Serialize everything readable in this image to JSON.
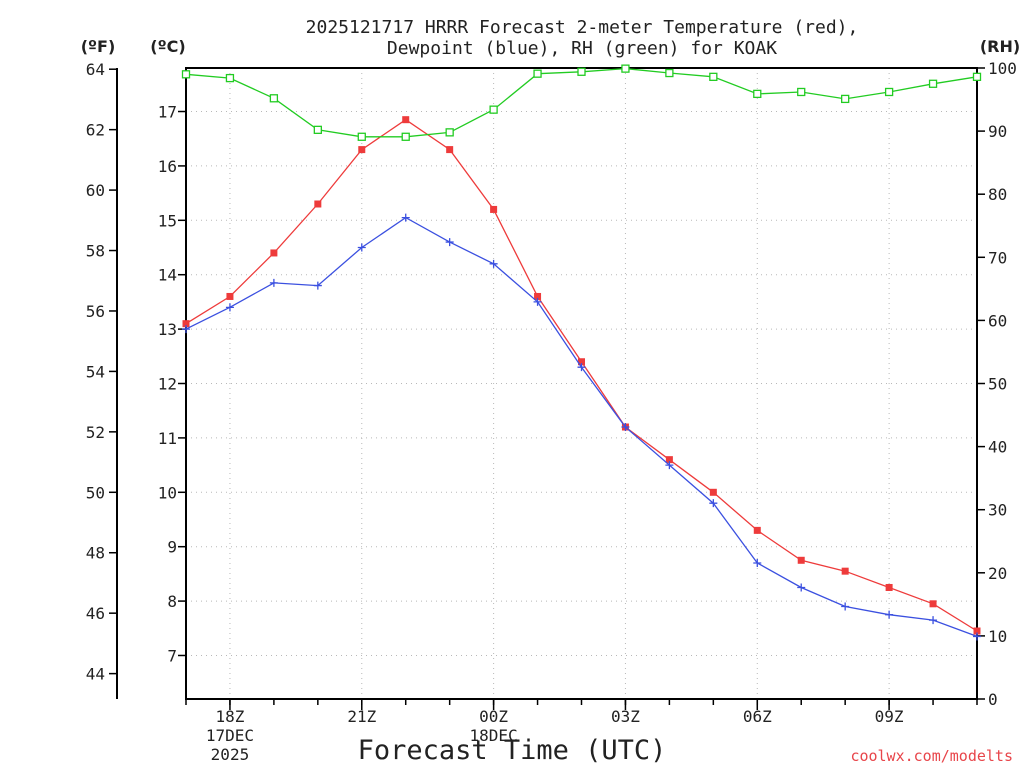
{
  "chart_data": {
    "type": "line",
    "title": "2025121717 HRRR Forecast 2-meter Temperature (red),",
    "subtitle": "Dewpoint (blue), RH (green) for KOAK",
    "xlabel": "Forecast Time (UTC)",
    "credit": "coolwx.com/modelts",
    "units": {
      "fahrenheit": "(ºF)",
      "celsius": "(ºC)",
      "rh": "(RH)"
    },
    "x_ticks": [
      {
        "hour": 1,
        "label": "18Z",
        "sub1": "17DEC",
        "sub2": "2025"
      },
      {
        "hour": 4,
        "label": "21Z"
      },
      {
        "hour": 7,
        "label": "00Z",
        "sub1": "18DEC"
      },
      {
        "hour": 10,
        "label": "03Z"
      },
      {
        "hour": 13,
        "label": "06Z"
      },
      {
        "hour": 16,
        "label": "09Z"
      }
    ],
    "xlim": [
      0,
      18
    ],
    "celsius_axis": {
      "ylim": [
        6.2,
        17.8
      ],
      "ticks": [
        7,
        8,
        9,
        10,
        11,
        12,
        13,
        14,
        15,
        16,
        17
      ]
    },
    "fahrenheit_ticks": [
      44,
      46,
      48,
      50,
      52,
      54,
      56,
      58,
      60,
      62,
      64
    ],
    "rh_axis": {
      "ylim": [
        0,
        100
      ],
      "ticks": [
        0,
        10,
        20,
        30,
        40,
        50,
        60,
        70,
        80,
        90,
        100
      ]
    },
    "series": [
      {
        "name": "Temperature",
        "axis": "celsius",
        "color": "#ee3b3b",
        "marker": "filled-square",
        "x": [
          0,
          1,
          2,
          3,
          4,
          5,
          6,
          7,
          8,
          9,
          10,
          11,
          12,
          13,
          14,
          15,
          16,
          17,
          18
        ],
        "values": [
          13.1,
          13.6,
          14.4,
          15.3,
          16.3,
          16.85,
          16.3,
          15.2,
          13.6,
          12.4,
          11.2,
          10.6,
          10.0,
          9.3,
          8.75,
          8.55,
          8.25,
          7.95,
          7.45
        ]
      },
      {
        "name": "Dewpoint",
        "axis": "celsius",
        "color": "#3b50e0",
        "marker": "plus",
        "x": [
          0,
          1,
          2,
          3,
          4,
          5,
          6,
          7,
          8,
          9,
          10,
          11,
          12,
          13,
          14,
          15,
          16,
          17,
          18
        ],
        "values": [
          13.0,
          13.4,
          13.85,
          13.8,
          14.5,
          15.05,
          14.6,
          14.2,
          13.5,
          12.3,
          11.2,
          10.5,
          9.8,
          8.7,
          8.25,
          7.9,
          7.75,
          7.65,
          7.35
        ]
      },
      {
        "name": "RH",
        "axis": "rh",
        "color": "#22cc22",
        "marker": "open-square",
        "x": [
          0,
          1,
          2,
          3,
          4,
          5,
          6,
          7,
          8,
          9,
          10,
          11,
          12,
          13,
          14,
          15,
          16,
          17,
          18
        ],
        "values": [
          99.0,
          98.4,
          95.2,
          90.2,
          89.1,
          89.1,
          89.8,
          93.4,
          99.1,
          99.4,
          99.9,
          99.2,
          98.6,
          95.9,
          96.2,
          95.1,
          96.2,
          97.5,
          98.6
        ]
      }
    ]
  }
}
